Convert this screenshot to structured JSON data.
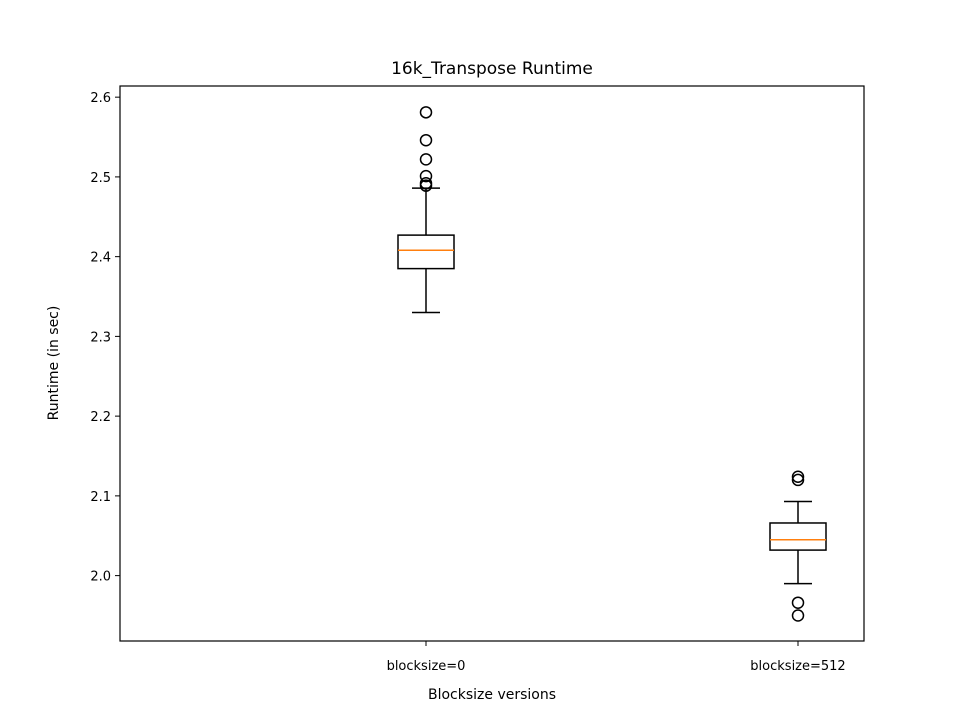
{
  "chart_data": {
    "type": "box",
    "title": "16k_Transpose Runtime",
    "xlabel": "Blocksize versions",
    "ylabel": "Runtime (in sec)",
    "categories": [
      "blocksize=0",
      "blocksize=512"
    ],
    "ylim": [
      1.918,
      2.614
    ],
    "yticks": [
      2.0,
      2.1,
      2.2,
      2.3,
      2.4,
      2.5,
      2.6
    ],
    "ytick_labels": [
      "2.0",
      "2.1",
      "2.2",
      "2.3",
      "2.4",
      "2.5",
      "2.6"
    ],
    "series": [
      {
        "name": "blocksize=0",
        "whisker_low": 2.33,
        "q1": 2.385,
        "median": 2.408,
        "q3": 2.427,
        "whisker_high": 2.486,
        "outliers": [
          2.581,
          2.546,
          2.522,
          2.501,
          2.492,
          2.489
        ]
      },
      {
        "name": "blocksize=512",
        "whisker_low": 1.99,
        "q1": 2.032,
        "median": 2.045,
        "q3": 2.066,
        "whisker_high": 2.093,
        "outliers": [
          2.124,
          2.12,
          1.966,
          1.95
        ]
      }
    ],
    "colors": {
      "box": "#000000",
      "median": "#ff7f0e",
      "background": "#ffffff"
    }
  }
}
